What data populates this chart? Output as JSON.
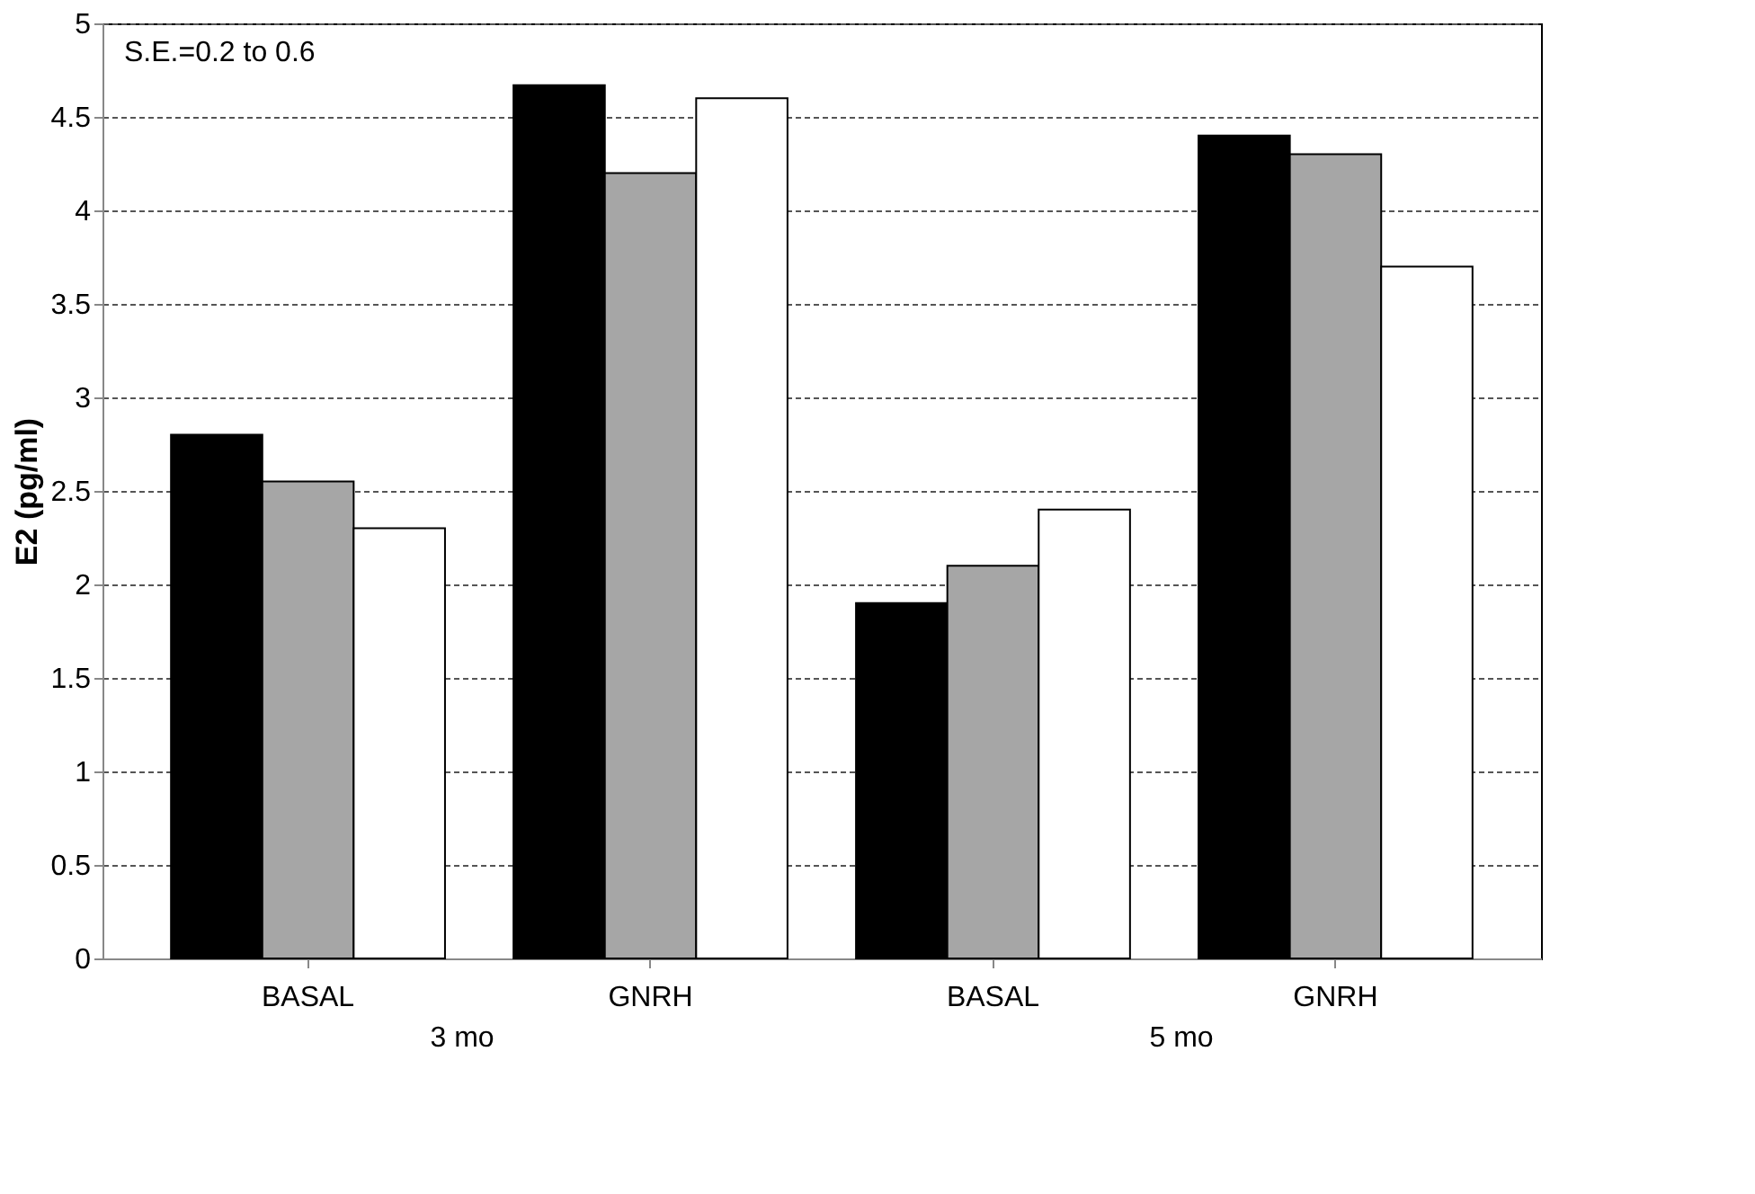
{
  "chart_data": {
    "type": "bar",
    "ylabel": "E2 (pg/ml)",
    "categories": [
      "BASAL",
      "GNRH",
      "BASAL",
      "GNRH"
    ],
    "series": [
      {
        "color": "#000000",
        "values": [
          2.8,
          4.67,
          1.9,
          4.4
        ]
      },
      {
        "color": "#a6a6a6",
        "values": [
          2.55,
          4.2,
          2.1,
          4.3
        ]
      },
      {
        "color": "#ffffff",
        "values": [
          2.3,
          4.6,
          2.4,
          3.7
        ]
      }
    ],
    "ylim": [
      0,
      5
    ],
    "yticks": [
      0,
      0.5,
      1,
      1.5,
      2,
      2.5,
      3,
      3.5,
      4,
      4.5,
      5
    ],
    "grid": "y",
    "annotations": [
      "S.E.=0.2 to 0.6",
      "3 mo",
      "5 mo"
    ]
  }
}
